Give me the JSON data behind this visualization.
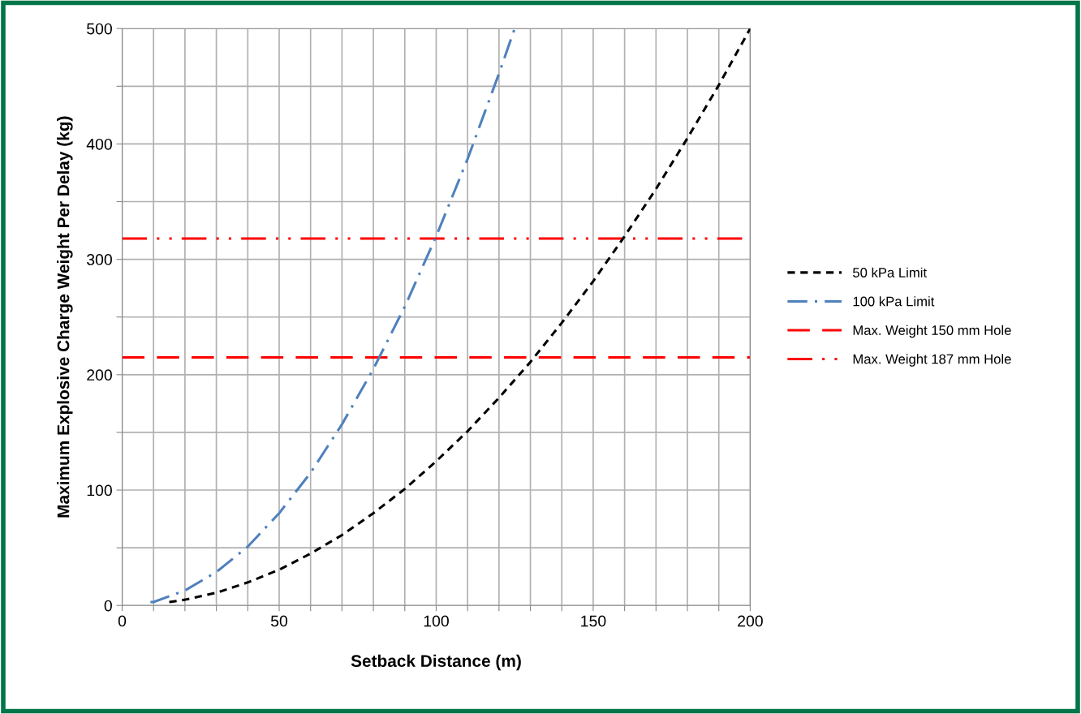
{
  "chart_data": {
    "type": "line",
    "xlabel": "Setback Distance (m)",
    "ylabel": "Maximum Explosive Charge Weight Per Delay (kg)",
    "series": [
      {
        "name": "50 kPa Limit",
        "color": "#000000",
        "line_style": "dashed",
        "x": [
          15,
          20,
          30,
          40,
          50,
          60,
          70,
          80,
          90,
          100,
          110,
          120,
          130,
          140,
          150,
          160,
          170,
          180,
          190,
          200
        ],
        "values": [
          3,
          5,
          11,
          20,
          31,
          45,
          61,
          80,
          101,
          125,
          151,
          180,
          211,
          245,
          281,
          320,
          361,
          405,
          451,
          500
        ]
      },
      {
        "name": "100 kPa Limit",
        "color": "#4f81bd",
        "line_style": "dashdot",
        "x": [
          9,
          10,
          20,
          30,
          40,
          50,
          60,
          70,
          80,
          90,
          100,
          110,
          120,
          125
        ],
        "values": [
          3,
          3,
          13,
          29,
          51,
          80,
          115,
          157,
          205,
          259,
          320,
          387,
          461,
          500
        ]
      }
    ],
    "ref_lines": [
      {
        "axis": "y",
        "value": 215,
        "label": "Max. Weight 150 mm Hole",
        "color": "#ff0000",
        "line_style": "longdash"
      },
      {
        "axis": "y",
        "value": 318,
        "label": "Max. Weight 187 mm Hole",
        "color": "#ff0000",
        "line_style": "dashdotdot"
      }
    ],
    "xlim": [
      0,
      200
    ],
    "ylim": [
      0,
      500
    ],
    "xticks": [
      0,
      {
        "value": 10,
        "label": null
      },
      {
        "value": 20,
        "label": null
      },
      {
        "value": 30,
        "label": null
      },
      {
        "value": 40,
        "label": null
      },
      50,
      {
        "value": 60,
        "label": null
      },
      {
        "value": 70,
        "label": null
      },
      {
        "value": 80,
        "label": null
      },
      {
        "value": 90,
        "label": null
      },
      100,
      {
        "value": 110,
        "label": null
      },
      {
        "value": 120,
        "label": null
      },
      {
        "value": 130,
        "label": null
      },
      {
        "value": 140,
        "label": null
      },
      150,
      {
        "value": 160,
        "label": null
      },
      {
        "value": 170,
        "label": null
      },
      {
        "value": 180,
        "label": null
      },
      {
        "value": 190,
        "label": null
      },
      200
    ],
    "yticks": [
      0,
      {
        "value": 50,
        "label": null
      },
      100,
      {
        "value": 150,
        "label": null
      },
      200,
      {
        "value": 250,
        "label": null
      },
      300,
      {
        "value": 350,
        "label": null
      },
      400,
      {
        "value": 450,
        "label": null
      },
      500
    ],
    "grid": true,
    "legend": "right"
  }
}
